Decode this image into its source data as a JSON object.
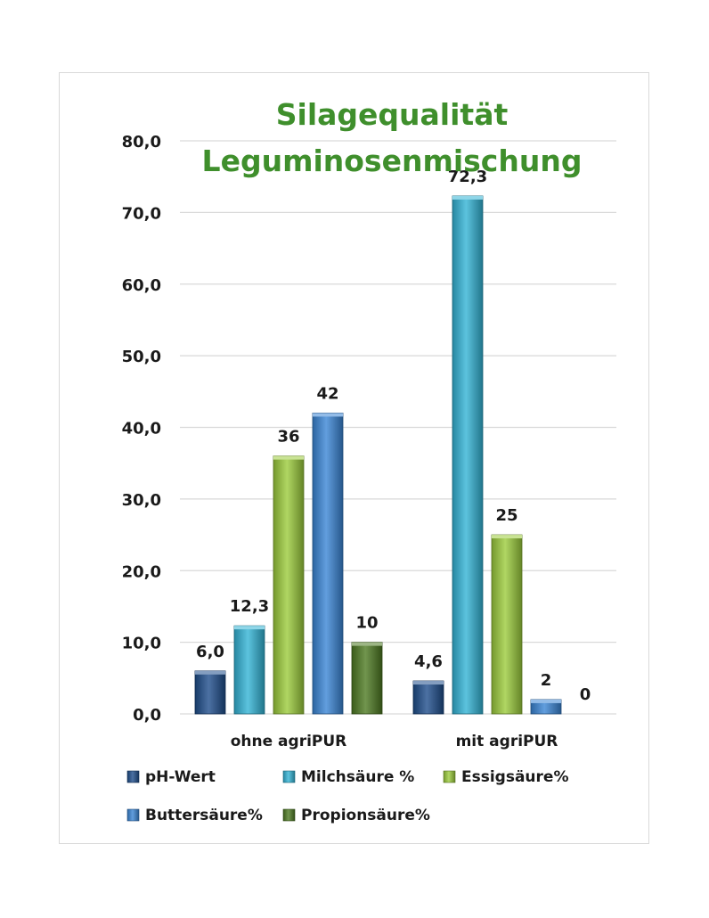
{
  "chart_data": {
    "type": "bar",
    "title_lines": [
      "Silagequalität",
      "Leguminosenmischung"
    ],
    "categories": [
      "ohne agriPUR",
      "mit agriPUR"
    ],
    "ylim": [
      0,
      80
    ],
    "yticks": [
      "0,0",
      "10,0",
      "20,0",
      "30,0",
      "40,0",
      "50,0",
      "60,0",
      "70,0",
      "80,0"
    ],
    "grid": true,
    "legend_position": "bottom",
    "series": [
      {
        "name": "pH-Wert",
        "color": "#1f4e8c",
        "values": [
          6.0,
          4.6
        ],
        "labels": [
          "6,0",
          "4,6"
        ]
      },
      {
        "name": "Milchsäure %",
        "color": "#33b4d6",
        "values": [
          12.3,
          72.3
        ],
        "labels": [
          "12,3",
          "72,3"
        ]
      },
      {
        "name": "Essigsäure%",
        "color": "#9ccc3c",
        "values": [
          36,
          25
        ],
        "labels": [
          "36",
          "25"
        ]
      },
      {
        "name": "Buttersäure%",
        "color": "#3b86d6",
        "values": [
          42,
          2
        ],
        "labels": [
          "42",
          "2"
        ]
      },
      {
        "name": "Propionsäure%",
        "color": "#4d7a22",
        "values": [
          10,
          0
        ],
        "labels": [
          "10",
          "0"
        ]
      }
    ]
  }
}
